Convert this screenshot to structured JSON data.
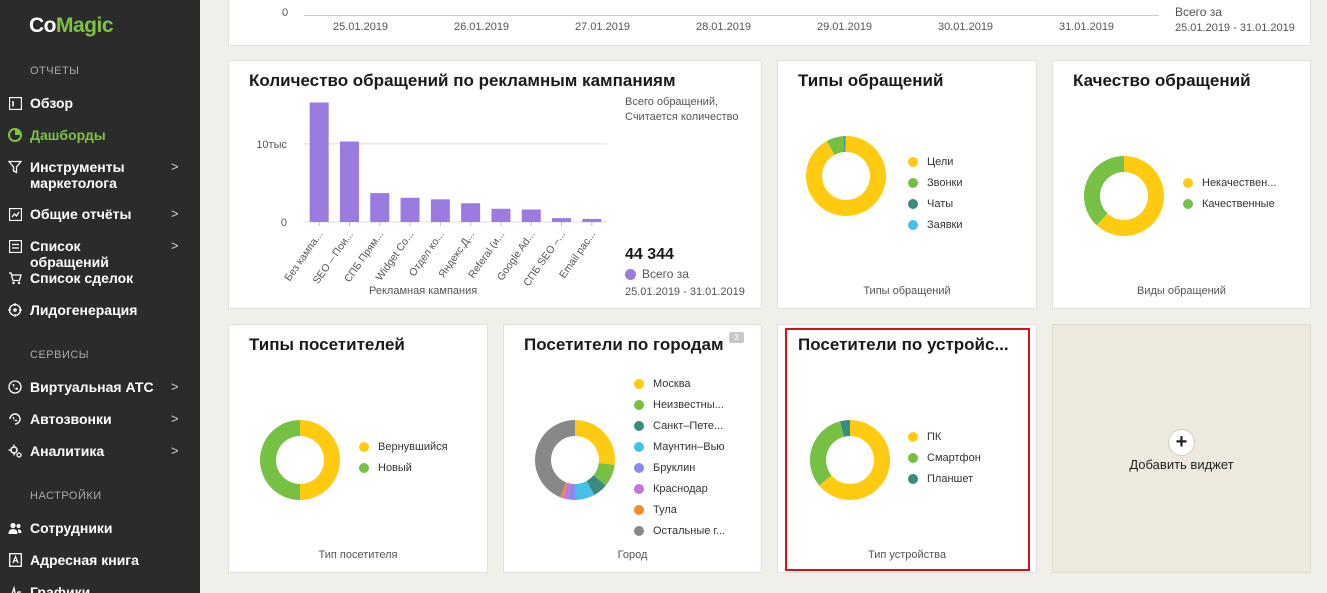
{
  "app": {
    "logo_part1": "Co",
    "logo_part2": "Magic"
  },
  "sidebar": {
    "sections": [
      {
        "label": "ОТЧЕТЫ"
      },
      {
        "label": "СЕРВИСЫ"
      },
      {
        "label": "НАСТРОЙКИ"
      }
    ],
    "items": [
      {
        "label": "Обзор",
        "icon": "report-icon"
      },
      {
        "label": "Дашборды",
        "icon": "pie-icon"
      },
      {
        "label": "Инструменты маркетолога",
        "icon": "filter-icon"
      },
      {
        "label": "Общие отчёты",
        "icon": "chart-icon"
      },
      {
        "label": "Список обращений",
        "icon": "list-icon"
      },
      {
        "label": "Список сделок",
        "icon": "cart-icon"
      },
      {
        "label": "Лидогенерация",
        "icon": "target-icon"
      },
      {
        "label": "Виртуальная АТС",
        "icon": "phone-icon"
      },
      {
        "label": "Автозвонки",
        "icon": "autocall-icon"
      },
      {
        "label": "Аналитика",
        "icon": "analytics-icon"
      },
      {
        "label": "Сотрудники",
        "icon": "users-icon"
      },
      {
        "label": "Адресная книга",
        "icon": "addressbook-icon"
      },
      {
        "label": "Графики активности",
        "icon": "activity-icon"
      }
    ],
    "chevron": ">"
  },
  "top_card": {
    "y_zero": "0",
    "dates": [
      "25.01.2019",
      "26.01.2019",
      "27.01.2019",
      "28.01.2019",
      "29.01.2019",
      "30.01.2019",
      "31.01.2019"
    ],
    "total_label": "Всего за",
    "period": "25.01.2019 - 31.01.2019"
  },
  "campaigns_card": {
    "title": "Количество обращений по рекламным кампаниям",
    "subtitle_line1": "Всего обращений,",
    "subtitle_line2": "Считается количество",
    "total": "44 344",
    "total_label": "Всего за",
    "period": "25.01.2019 - 31.01.2019",
    "chart_data": {
      "type": "bar",
      "categories": [
        "Без кампа...",
        "SEO – Пои...",
        "СПБ Прям...",
        "Widget Co...",
        "Отдел ко...",
        "Яндекс.Д...",
        "Referal (и...",
        "Google Ad...",
        "СПБ SEO –...",
        "Email рас..."
      ],
      "values": [
        15300,
        10300,
        3700,
        3100,
        2900,
        2400,
        1700,
        1600,
        500,
        400
      ],
      "xlabel": "Рекламная кампания",
      "ytick_labels": [
        "0",
        "10тыс"
      ],
      "ylim": [
        0,
        16000
      ],
      "color": "#9b7be0"
    }
  },
  "types_card": {
    "title": "Типы обращений",
    "footer": "Типы обращений",
    "chart_data": {
      "type": "pie",
      "categories": [
        "Цели",
        "Звонки",
        "Чаты",
        "Заявки"
      ],
      "values": [
        92,
        7,
        0.5,
        0.5
      ],
      "colors": [
        "#fecb11",
        "#76c043",
        "#3a8a7e",
        "#45c1e8"
      ]
    }
  },
  "quality_card": {
    "title": "Качество обращений",
    "footer": "Виды обращений",
    "chart_data": {
      "type": "pie",
      "categories": [
        "Некачествен...",
        "Качественные"
      ],
      "values": [
        62,
        38
      ],
      "colors": [
        "#fecb11",
        "#76c043"
      ]
    }
  },
  "visitors_type_card": {
    "title": "Типы посетителей",
    "footer": "Тип посетителя",
    "chart_data": {
      "type": "pie",
      "categories": [
        "Вернувшийся",
        "Новый"
      ],
      "values": [
        50,
        50
      ],
      "colors": [
        "#fecb11",
        "#76c043"
      ]
    }
  },
  "cities_card": {
    "title": "Посетители по городам",
    "badge": "3",
    "footer": "Город",
    "chart_data": {
      "type": "pie",
      "categories": [
        "Москва",
        "Неизвестны...",
        "Санкт–Пете...",
        "Маунтин–Вью",
        "Бруклин",
        "Краснодар",
        "Тула",
        "Остальные г..."
      ],
      "values": [
        27,
        9,
        6,
        8,
        3,
        2,
        1,
        44
      ],
      "colors": [
        "#fecb11",
        "#76c043",
        "#3a8a7e",
        "#45c1e8",
        "#8c88ee",
        "#c376dc",
        "#f38a2e",
        "#888888"
      ]
    }
  },
  "devices_card": {
    "title": "Посетители по устройс...",
    "footer": "Тип устройства",
    "chart_data": {
      "type": "pie",
      "categories": [
        "ПК",
        "Смартфон",
        "Планшет"
      ],
      "values": [
        64,
        32,
        4
      ],
      "colors": [
        "#fecb11",
        "#76c043",
        "#3a8a7e"
      ]
    }
  },
  "add_widget": {
    "label": "Добавить виджет",
    "plus": "+"
  }
}
